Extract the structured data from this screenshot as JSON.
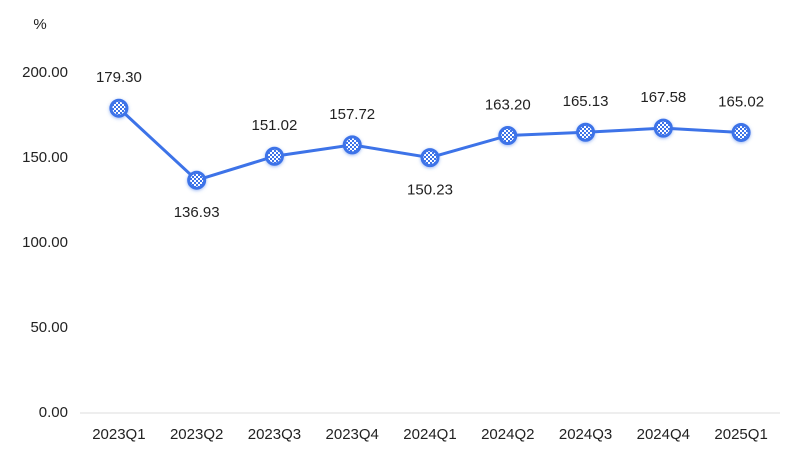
{
  "chart_data": {
    "type": "line",
    "y_label": "%",
    "categories": [
      "2023Q1",
      "2023Q2",
      "2023Q3",
      "2023Q4",
      "2024Q1",
      "2024Q2",
      "2024Q3",
      "2024Q4",
      "2025Q1"
    ],
    "series": [
      {
        "color": "#3d73e8",
        "values": [
          179.3,
          136.93,
          151.02,
          157.72,
          150.23,
          163.2,
          165.13,
          167.58,
          165.02
        ],
        "value_labels": [
          "179.30",
          "136.93",
          "151.02",
          "157.72",
          "150.23",
          "163.20",
          "165.13",
          "167.58",
          "165.02"
        ]
      }
    ],
    "ylim": [
      0,
      200
    ],
    "yticks": [
      {
        "value": 0,
        "label": "0.00"
      },
      {
        "value": 50,
        "label": "50.00"
      },
      {
        "value": 100,
        "label": "100.00"
      },
      {
        "value": 150,
        "label": "150.00"
      },
      {
        "value": 200,
        "label": "200.00"
      }
    ],
    "grid": false
  }
}
